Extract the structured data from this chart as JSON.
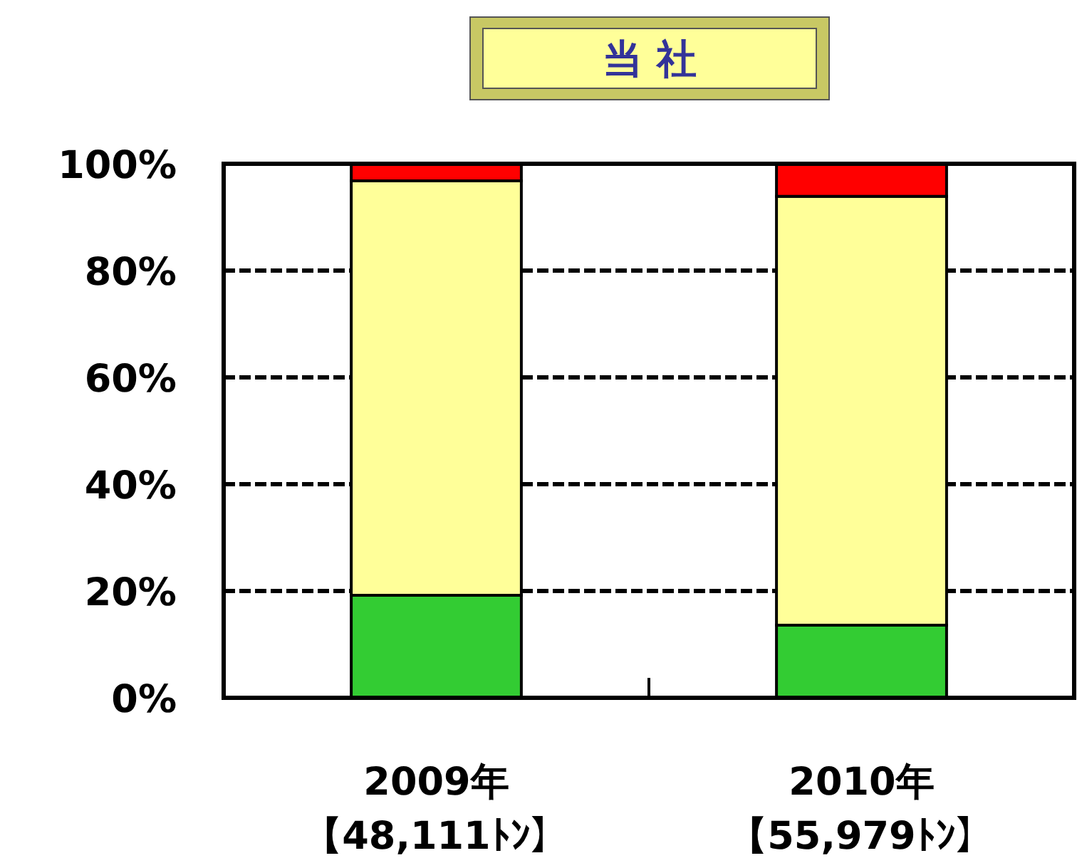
{
  "chart_data": {
    "type": "bar",
    "title": "当 社",
    "stacked": true,
    "grid": "y",
    "categories": [
      "2009年【48,111ﾄﾝ】",
      "2010年【55,979ﾄﾝ】"
    ],
    "series": [
      {
        "color": "#33cc33",
        "values": [
          19.2,
          13.6
        ]
      },
      {
        "color": "#ffff99",
        "values": [
          77.6,
          80.3
        ]
      },
      {
        "color": "#ff0000",
        "values": [
          3.2,
          6.1
        ]
      }
    ],
    "ylim": [
      0,
      100
    ],
    "yticks": [
      {
        "value": 0,
        "label": "0%"
      },
      {
        "value": 20,
        "label": "20%"
      },
      {
        "value": 40,
        "label": "40%"
      },
      {
        "value": 60,
        "label": "60%"
      },
      {
        "value": 80,
        "label": "80%"
      },
      {
        "value": 100,
        "label": "100%"
      }
    ]
  }
}
